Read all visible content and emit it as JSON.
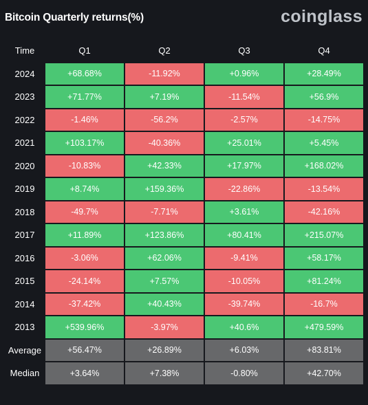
{
  "header": {
    "title": "Bitcoin Quarterly returns(%)",
    "brand": "coinglass"
  },
  "colors": {
    "background": "#16181d",
    "positive": "#4bc774",
    "negative": "#ec6b6e",
    "summary": "#67686a",
    "brand": "#bfc3c9"
  },
  "chart_data": {
    "type": "table",
    "title": "Bitcoin Quarterly returns(%)",
    "columns": [
      "Time",
      "Q1",
      "Q2",
      "Q3",
      "Q4"
    ],
    "rows": [
      {
        "label": "2024",
        "cells": [
          {
            "text": "+68.68%",
            "value": 68.68
          },
          {
            "text": "-11.92%",
            "value": -11.92
          },
          {
            "text": "+0.96%",
            "value": 0.96
          },
          {
            "text": "+28.49%",
            "value": 28.49
          }
        ]
      },
      {
        "label": "2023",
        "cells": [
          {
            "text": "+71.77%",
            "value": 71.77
          },
          {
            "text": "+7.19%",
            "value": 7.19
          },
          {
            "text": "-11.54%",
            "value": -11.54
          },
          {
            "text": "+56.9%",
            "value": 56.9
          }
        ]
      },
      {
        "label": "2022",
        "cells": [
          {
            "text": "-1.46%",
            "value": -1.46
          },
          {
            "text": "-56.2%",
            "value": -56.2
          },
          {
            "text": "-2.57%",
            "value": -2.57
          },
          {
            "text": "-14.75%",
            "value": -14.75
          }
        ]
      },
      {
        "label": "2021",
        "cells": [
          {
            "text": "+103.17%",
            "value": 103.17
          },
          {
            "text": "-40.36%",
            "value": -40.36
          },
          {
            "text": "+25.01%",
            "value": 25.01
          },
          {
            "text": "+5.45%",
            "value": 5.45
          }
        ]
      },
      {
        "label": "2020",
        "cells": [
          {
            "text": "-10.83%",
            "value": -10.83
          },
          {
            "text": "+42.33%",
            "value": 42.33
          },
          {
            "text": "+17.97%",
            "value": 17.97
          },
          {
            "text": "+168.02%",
            "value": 168.02
          }
        ]
      },
      {
        "label": "2019",
        "cells": [
          {
            "text": "+8.74%",
            "value": 8.74
          },
          {
            "text": "+159.36%",
            "value": 159.36
          },
          {
            "text": "-22.86%",
            "value": -22.86
          },
          {
            "text": "-13.54%",
            "value": -13.54
          }
        ]
      },
      {
        "label": "2018",
        "cells": [
          {
            "text": "-49.7%",
            "value": -49.7
          },
          {
            "text": "-7.71%",
            "value": -7.71
          },
          {
            "text": "+3.61%",
            "value": 3.61
          },
          {
            "text": "-42.16%",
            "value": -42.16
          }
        ]
      },
      {
        "label": "2017",
        "cells": [
          {
            "text": "+11.89%",
            "value": 11.89
          },
          {
            "text": "+123.86%",
            "value": 123.86
          },
          {
            "text": "+80.41%",
            "value": 80.41
          },
          {
            "text": "+215.07%",
            "value": 215.07
          }
        ]
      },
      {
        "label": "2016",
        "cells": [
          {
            "text": "-3.06%",
            "value": -3.06
          },
          {
            "text": "+62.06%",
            "value": 62.06
          },
          {
            "text": "-9.41%",
            "value": -9.41
          },
          {
            "text": "+58.17%",
            "value": 58.17
          }
        ]
      },
      {
        "label": "2015",
        "cells": [
          {
            "text": "-24.14%",
            "value": -24.14
          },
          {
            "text": "+7.57%",
            "value": 7.57
          },
          {
            "text": "-10.05%",
            "value": -10.05
          },
          {
            "text": "+81.24%",
            "value": 81.24
          }
        ]
      },
      {
        "label": "2014",
        "cells": [
          {
            "text": "-37.42%",
            "value": -37.42
          },
          {
            "text": "+40.43%",
            "value": 40.43
          },
          {
            "text": "-39.74%",
            "value": -39.74
          },
          {
            "text": "-16.7%",
            "value": -16.7
          }
        ]
      },
      {
        "label": "2013",
        "cells": [
          {
            "text": "+539.96%",
            "value": 539.96
          },
          {
            "text": "-3.97%",
            "value": -3.97
          },
          {
            "text": "+40.6%",
            "value": 40.6
          },
          {
            "text": "+479.59%",
            "value": 479.59
          }
        ]
      }
    ],
    "summary": [
      {
        "label": "Average",
        "cells": [
          {
            "text": "+56.47%",
            "value": 56.47
          },
          {
            "text": "+26.89%",
            "value": 26.89
          },
          {
            "text": "+6.03%",
            "value": 6.03
          },
          {
            "text": "+83.81%",
            "value": 83.81
          }
        ]
      },
      {
        "label": "Median",
        "cells": [
          {
            "text": "+3.64%",
            "value": 3.64
          },
          {
            "text": "+7.38%",
            "value": 7.38
          },
          {
            "text": "-0.80%",
            "value": -0.8
          },
          {
            "text": "+42.70%",
            "value": 42.7
          }
        ]
      }
    ]
  }
}
